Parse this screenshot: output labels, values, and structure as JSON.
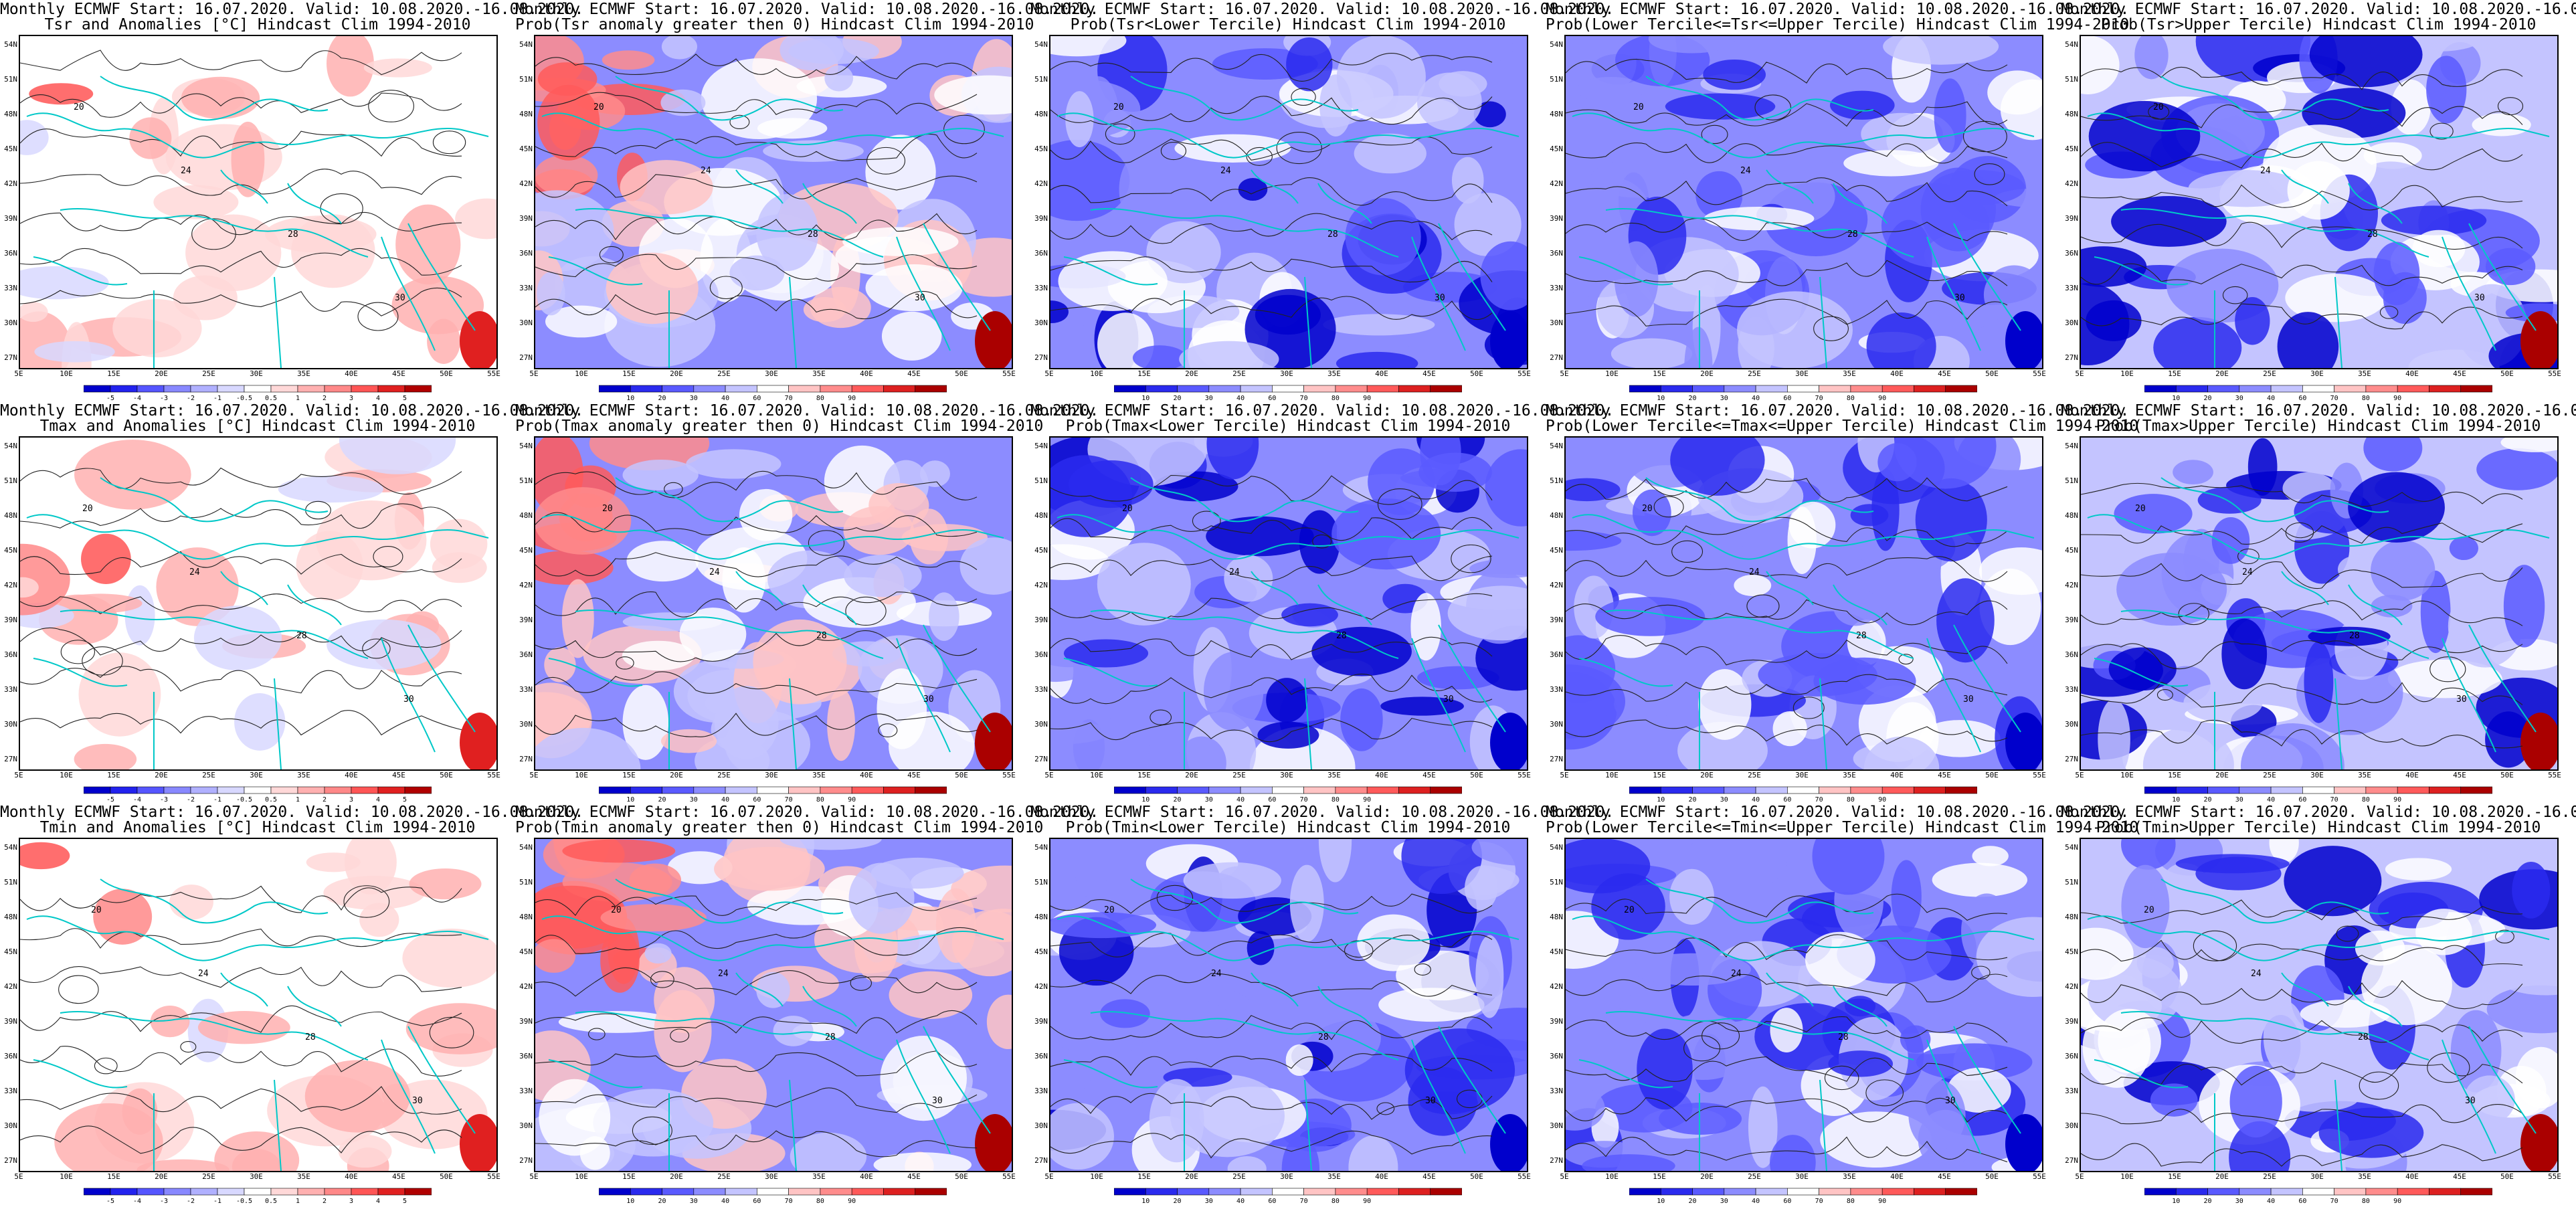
{
  "header": {
    "line1": "Monthly ECMWF Start: 16.07.2020. Valid: 10.08.2020.-16.08.2020.",
    "hindcast": "Hindcast Clim 1994-2010"
  },
  "rows": [
    {
      "var": "Tsr",
      "titles": [
        "Tsr and Anomalies [°C] Hindcast Clim 1994-2010",
        "Prob(Tsr anomaly greater then 0) Hindcast Clim 1994-2010",
        "Prob(Tsr<Lower Tercile) Hindcast Clim 1994-2010",
        "Prob(Lower Tercile<=Tsr<=Upper Tercile) Hindcast Clim 1994-2010",
        "Prob(Tsr>Upper Tercile) Hindcast Clim 1994-2010"
      ]
    },
    {
      "var": "Tmax",
      "titles": [
        "Tmax and Anomalies [°C] Hindcast Clim 1994-2010",
        "Prob(Tmax anomaly greater then 0) Hindcast Clim 1994-2010",
        "Prob(Tmax<Lower Tercile) Hindcast Clim 1994-2010",
        "Prob(Lower Tercile<=Tmax<=Upper Tercile) Hindcast Clim 1994-2010",
        "Prob(Tmax>Upper Tercile) Hindcast Clim 1994-2010"
      ]
    },
    {
      "var": "Tmin",
      "titles": [
        "Tmin and Anomalies [°C] Hindcast Clim 1994-2010",
        "Prob(Tmin anomaly greater then 0) Hindcast Clim 1994-2010",
        "Prob(Tmin<Lower Tercile) Hindcast Clim 1994-2010",
        "Prob(Lower Tercile<=Tmin<=Upper Tercile) Hindcast Clim 1994-2010",
        "Prob(Tmin>Upper Tercile) Hindcast Clim 1994-2010"
      ]
    }
  ],
  "lat_ticks": [
    "54N",
    "51N",
    "48N",
    "45N",
    "42N",
    "39N",
    "36N",
    "33N",
    "30N",
    "27N"
  ],
  "lon_ticks": [
    "5E",
    "10E",
    "15E",
    "20E",
    "25E",
    "30E",
    "35E",
    "40E",
    "45E",
    "50E",
    "55E"
  ],
  "anomaly_scale": [
    "-5",
    "-4",
    "-3",
    "-2",
    "-1",
    "-0.5",
    "0.5",
    "1",
    "2",
    "3",
    "4",
    "5"
  ],
  "prob_scale": [
    "10",
    "20",
    "30",
    "40",
    "60",
    "70",
    "80",
    "90"
  ],
  "contour_labels": [
    "20",
    "24",
    "28",
    "30"
  ],
  "colors": {
    "anomaly": [
      "#0000cc",
      "#2222ee",
      "#5555ff",
      "#8888ff",
      "#b0b0ff",
      "#d8d8ff",
      "#ffffff",
      "#ffd8d8",
      "#ffb0b0",
      "#ff8888",
      "#ff5555",
      "#e02020",
      "#b00000"
    ],
    "prob": [
      "#0000cc",
      "#2a2aee",
      "#5a5aff",
      "#8c8cff",
      "#c4c4ff",
      "#ffffff",
      "#ffc4c4",
      "#ff8c8c",
      "#ff5a5a",
      "#dd2020",
      "#aa0000"
    ],
    "coast": "#00c8c8",
    "contour": "#222222"
  }
}
